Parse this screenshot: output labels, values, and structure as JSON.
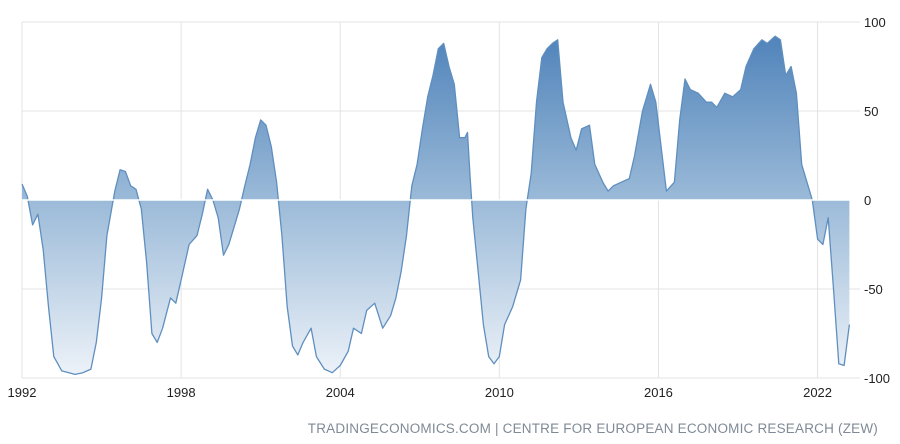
{
  "source_text": "TRADINGECONOMICS.COM | CENTRE FOR EUROPEAN ECONOMIC RESEARCH (ZEW)",
  "colors": {
    "line": "#5f8fbf",
    "fill_dark": "#4a7fb8",
    "fill_light": "#eef3f9",
    "grid": "#e3e3e3",
    "zero_line": "#ffffff"
  },
  "chart_data": {
    "type": "area",
    "title": "",
    "xlabel": "",
    "ylabel": "",
    "ylim": [
      -100,
      100
    ],
    "xlim": [
      1992.0,
      2023.6
    ],
    "y_ticks": [
      100,
      50,
      0,
      -50,
      -100
    ],
    "x_ticks": [
      1992,
      1998,
      2004,
      2010,
      2016,
      2022
    ],
    "grid": true,
    "legend": "none",
    "series": [
      {
        "values": [
          [
            1992.0,
            9
          ],
          [
            1992.2,
            2
          ],
          [
            1992.4,
            -14
          ],
          [
            1992.6,
            -8
          ],
          [
            1992.8,
            -28
          ],
          [
            1993.0,
            -60
          ],
          [
            1993.2,
            -88
          ],
          [
            1993.5,
            -96
          ],
          [
            1994.0,
            -98
          ],
          [
            1994.3,
            -97
          ],
          [
            1994.6,
            -95
          ],
          [
            1994.8,
            -80
          ],
          [
            1995.0,
            -55
          ],
          [
            1995.2,
            -20
          ],
          [
            1995.5,
            5
          ],
          [
            1995.7,
            17
          ],
          [
            1995.9,
            16
          ],
          [
            1996.1,
            8
          ],
          [
            1996.3,
            6
          ],
          [
            1996.5,
            -5
          ],
          [
            1996.7,
            -35
          ],
          [
            1996.9,
            -75
          ],
          [
            1997.1,
            -80
          ],
          [
            1997.3,
            -72
          ],
          [
            1997.6,
            -55
          ],
          [
            1997.8,
            -58
          ],
          [
            1998.0,
            -45
          ],
          [
            1998.3,
            -25
          ],
          [
            1998.6,
            -20
          ],
          [
            1998.8,
            -8
          ],
          [
            1999.0,
            6
          ],
          [
            1999.2,
            0
          ],
          [
            1999.4,
            -10
          ],
          [
            1999.6,
            -31
          ],
          [
            1999.8,
            -25
          ],
          [
            2000.0,
            -15
          ],
          [
            2000.2,
            -5
          ],
          [
            2000.4,
            8
          ],
          [
            2000.6,
            20
          ],
          [
            2000.8,
            35
          ],
          [
            2001.0,
            45
          ],
          [
            2001.2,
            42
          ],
          [
            2001.4,
            30
          ],
          [
            2001.6,
            10
          ],
          [
            2001.8,
            -20
          ],
          [
            2002.0,
            -60
          ],
          [
            2002.2,
            -82
          ],
          [
            2002.4,
            -87
          ],
          [
            2002.6,
            -80
          ],
          [
            2002.9,
            -72
          ],
          [
            2003.1,
            -88
          ],
          [
            2003.4,
            -95
          ],
          [
            2003.7,
            -97
          ],
          [
            2004.0,
            -93
          ],
          [
            2004.3,
            -85
          ],
          [
            2004.5,
            -72
          ],
          [
            2004.8,
            -75
          ],
          [
            2005.0,
            -62
          ],
          [
            2005.3,
            -58
          ],
          [
            2005.6,
            -72
          ],
          [
            2005.9,
            -65
          ],
          [
            2006.1,
            -55
          ],
          [
            2006.3,
            -40
          ],
          [
            2006.5,
            -20
          ],
          [
            2006.7,
            8
          ],
          [
            2006.9,
            20
          ],
          [
            2007.1,
            40
          ],
          [
            2007.3,
            58
          ],
          [
            2007.5,
            70
          ],
          [
            2007.7,
            85
          ],
          [
            2007.9,
            88
          ],
          [
            2008.1,
            75
          ],
          [
            2008.3,
            65
          ],
          [
            2008.5,
            35
          ],
          [
            2008.7,
            35
          ],
          [
            2008.8,
            38
          ],
          [
            2008.9,
            12
          ],
          [
            2009.0,
            -10
          ],
          [
            2009.2,
            -40
          ],
          [
            2009.4,
            -70
          ],
          [
            2009.6,
            -88
          ],
          [
            2009.8,
            -92
          ],
          [
            2010.0,
            -88
          ],
          [
            2010.2,
            -70
          ],
          [
            2010.5,
            -60
          ],
          [
            2010.8,
            -45
          ],
          [
            2011.0,
            -5
          ],
          [
            2011.2,
            15
          ],
          [
            2011.4,
            55
          ],
          [
            2011.6,
            80
          ],
          [
            2011.8,
            85
          ],
          [
            2012.0,
            88
          ],
          [
            2012.2,
            90
          ],
          [
            2012.4,
            55
          ],
          [
            2012.7,
            35
          ],
          [
            2012.9,
            28
          ],
          [
            2013.1,
            40
          ],
          [
            2013.4,
            42
          ],
          [
            2013.6,
            20
          ],
          [
            2013.9,
            10
          ],
          [
            2014.1,
            5
          ],
          [
            2014.3,
            8
          ],
          [
            2014.6,
            10
          ],
          [
            2014.9,
            12
          ],
          [
            2015.1,
            25
          ],
          [
            2015.4,
            50
          ],
          [
            2015.7,
            65
          ],
          [
            2015.9,
            55
          ],
          [
            2016.1,
            30
          ],
          [
            2016.3,
            5
          ],
          [
            2016.6,
            10
          ],
          [
            2016.8,
            45
          ],
          [
            2017.0,
            68
          ],
          [
            2017.2,
            62
          ],
          [
            2017.5,
            60
          ],
          [
            2017.8,
            55
          ],
          [
            2018.0,
            55
          ],
          [
            2018.2,
            52
          ],
          [
            2018.5,
            60
          ],
          [
            2018.8,
            58
          ],
          [
            2019.1,
            62
          ],
          [
            2019.3,
            75
          ],
          [
            2019.6,
            85
          ],
          [
            2019.9,
            90
          ],
          [
            2020.1,
            88
          ],
          [
            2020.4,
            92
          ],
          [
            2020.6,
            90
          ],
          [
            2020.8,
            70
          ],
          [
            2021.0,
            75
          ],
          [
            2021.2,
            60
          ],
          [
            2021.4,
            20
          ],
          [
            2021.6,
            10
          ],
          [
            2021.8,
            0
          ],
          [
            2022.0,
            -22
          ],
          [
            2022.2,
            -25
          ],
          [
            2022.4,
            -10
          ],
          [
            2022.6,
            -50
          ],
          [
            2022.8,
            -92
          ],
          [
            2023.0,
            -93
          ],
          [
            2023.2,
            -70
          ]
        ]
      }
    ]
  }
}
